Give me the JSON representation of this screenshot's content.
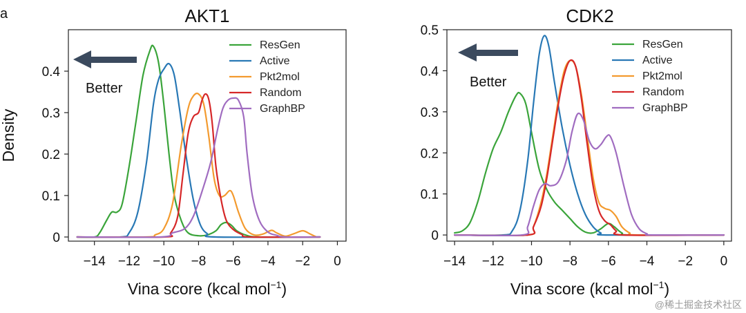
{
  "panel_letter": "a",
  "watermark": "@稀土掘金技术社区",
  "arrow_label": "Better",
  "chart_data": [
    {
      "type": "line",
      "title": "AKT1",
      "xlabel": "Vina score (kcal mol",
      "xlabel_sup": "−1",
      "xlabel_close": ")",
      "ylabel": "Density",
      "xlim": [
        -15.5,
        0.5
      ],
      "ylim": [
        -0.01,
        0.5
      ],
      "xticks": [
        -14,
        -12,
        -10,
        -8,
        -6,
        -4,
        -2,
        0
      ],
      "xtick_labels": [
        "−14",
        "−12",
        "−10",
        "−8",
        "−6",
        "−4",
        "−2",
        "0"
      ],
      "yticks": [
        0,
        0.1,
        0.2,
        0.3,
        0.4
      ],
      "ytick_labels": [
        "0",
        "0.1",
        "0.2",
        "0.3",
        "0.4"
      ],
      "series": [
        {
          "name": "ResGen",
          "color": "#3aa43a",
          "points": [
            [
              -15,
              0
            ],
            [
              -14,
              0
            ],
            [
              -13.7,
              0.01
            ],
            [
              -13.3,
              0.04
            ],
            [
              -13.0,
              0.06
            ],
            [
              -12.7,
              0.06
            ],
            [
              -12.4,
              0.08
            ],
            [
              -12.0,
              0.17
            ],
            [
              -11.6,
              0.28
            ],
            [
              -11.2,
              0.39
            ],
            [
              -10.8,
              0.45
            ],
            [
              -10.6,
              0.46
            ],
            [
              -10.3,
              0.42
            ],
            [
              -10.0,
              0.32
            ],
            [
              -9.7,
              0.2
            ],
            [
              -9.4,
              0.1
            ],
            [
              -9.0,
              0.04
            ],
            [
              -8.6,
              0.01
            ],
            [
              -8.0,
              0.003
            ],
            [
              -7.5,
              0.005
            ],
            [
              -7.0,
              0.015
            ],
            [
              -6.7,
              0.03
            ],
            [
              -6.4,
              0.035
            ],
            [
              -6.1,
              0.028
            ],
            [
              -5.8,
              0.015
            ],
            [
              -5.3,
              0.005
            ],
            [
              -4.5,
              0
            ],
            [
              -1,
              0
            ]
          ]
        },
        {
          "name": "Active",
          "color": "#2878b5",
          "points": [
            [
              -15,
              0
            ],
            [
              -12.5,
              0
            ],
            [
              -12.0,
              0.01
            ],
            [
              -11.5,
              0.06
            ],
            [
              -11.0,
              0.18
            ],
            [
              -10.6,
              0.32
            ],
            [
              -10.3,
              0.38
            ],
            [
              -10.0,
              0.405
            ],
            [
              -9.7,
              0.418
            ],
            [
              -9.4,
              0.39
            ],
            [
              -9.1,
              0.31
            ],
            [
              -8.7,
              0.19
            ],
            [
              -8.3,
              0.09
            ],
            [
              -7.9,
              0.03
            ],
            [
              -7.5,
              0.008
            ],
            [
              -7.0,
              0
            ],
            [
              -1,
              0
            ]
          ]
        },
        {
          "name": "Pkt2mol",
          "color": "#f39a2e",
          "points": [
            [
              -15,
              0
            ],
            [
              -11,
              0
            ],
            [
              -10.5,
              0.005
            ],
            [
              -10.0,
              0.02
            ],
            [
              -9.5,
              0.08
            ],
            [
              -9.0,
              0.22
            ],
            [
              -8.6,
              0.31
            ],
            [
              -8.3,
              0.34
            ],
            [
              -8.0,
              0.345
            ],
            [
              -7.7,
              0.32
            ],
            [
              -7.4,
              0.24
            ],
            [
              -7.1,
              0.14
            ],
            [
              -6.8,
              0.1
            ],
            [
              -6.5,
              0.1
            ],
            [
              -6.2,
              0.112
            ],
            [
              -6.0,
              0.1
            ],
            [
              -5.7,
              0.06
            ],
            [
              -5.3,
              0.02
            ],
            [
              -4.8,
              0.005
            ],
            [
              -4.3,
              0.007
            ],
            [
              -3.8,
              0.016
            ],
            [
              -3.5,
              0.01
            ],
            [
              -3.0,
              0.002
            ],
            [
              -2.5,
              0.008
            ],
            [
              -2.0,
              0.015
            ],
            [
              -1.6,
              0.008
            ],
            [
              -1.2,
              0
            ],
            [
              -1,
              0
            ]
          ]
        },
        {
          "name": "Random",
          "color": "#d62728",
          "points": [
            [
              -15,
              0
            ],
            [
              -10,
              0
            ],
            [
              -9.6,
              0.01
            ],
            [
              -9.2,
              0.05
            ],
            [
              -8.9,
              0.15
            ],
            [
              -8.6,
              0.25
            ],
            [
              -8.3,
              0.29
            ],
            [
              -8.0,
              0.3
            ],
            [
              -7.8,
              0.33
            ],
            [
              -7.6,
              0.345
            ],
            [
              -7.4,
              0.33
            ],
            [
              -7.2,
              0.27
            ],
            [
              -7.0,
              0.17
            ],
            [
              -6.7,
              0.09
            ],
            [
              -6.4,
              0.04
            ],
            [
              -6.0,
              0.018
            ],
            [
              -5.5,
              0.006
            ],
            [
              -5.0,
              0
            ],
            [
              -1,
              0
            ]
          ]
        },
        {
          "name": "GraphBP",
          "color": "#a06cc0",
          "points": [
            [
              -15,
              0
            ],
            [
              -10.2,
              0
            ],
            [
              -9.5,
              0.01
            ],
            [
              -8.8,
              0.02
            ],
            [
              -8.3,
              0.05
            ],
            [
              -7.8,
              0.11
            ],
            [
              -7.3,
              0.18
            ],
            [
              -6.9,
              0.26
            ],
            [
              -6.6,
              0.31
            ],
            [
              -6.3,
              0.33
            ],
            [
              -6.0,
              0.335
            ],
            [
              -5.7,
              0.33
            ],
            [
              -5.4,
              0.29
            ],
            [
              -5.2,
              0.2
            ],
            [
              -4.9,
              0.1
            ],
            [
              -4.5,
              0.04
            ],
            [
              -4.0,
              0.012
            ],
            [
              -3.5,
              0.004
            ],
            [
              -3.0,
              0
            ],
            [
              -1,
              0
            ]
          ]
        }
      ]
    },
    {
      "type": "line",
      "title": "CDK2",
      "xlabel": "Vina score (kcal mol",
      "xlabel_sup": "−1",
      "xlabel_close": ")",
      "ylabel": "",
      "xlim": [
        -14.4,
        0.4
      ],
      "ylim": [
        -0.015,
        0.5
      ],
      "xticks": [
        -14,
        -12,
        -10,
        -8,
        -6,
        -4,
        -2,
        0
      ],
      "xtick_labels": [
        "−14",
        "−12",
        "−10",
        "−8",
        "−6",
        "−4",
        "−2",
        "0"
      ],
      "yticks": [
        0,
        0.1,
        0.2,
        0.3,
        0.4,
        0.5
      ],
      "ytick_labels": [
        "0",
        "0.1",
        "0.2",
        "0.3",
        "0.4",
        "0.5"
      ],
      "series": [
        {
          "name": "ResGen",
          "color": "#3aa43a",
          "points": [
            [
              -14,
              0.005
            ],
            [
              -13.6,
              0.01
            ],
            [
              -13.2,
              0.03
            ],
            [
              -12.8,
              0.08
            ],
            [
              -12.4,
              0.15
            ],
            [
              -12.0,
              0.21
            ],
            [
              -11.6,
              0.25
            ],
            [
              -11.2,
              0.3
            ],
            [
              -10.8,
              0.34
            ],
            [
              -10.6,
              0.345
            ],
            [
              -10.3,
              0.32
            ],
            [
              -10.0,
              0.25
            ],
            [
              -9.6,
              0.16
            ],
            [
              -9.2,
              0.11
            ],
            [
              -8.8,
              0.08
            ],
            [
              -8.4,
              0.06
            ],
            [
              -8.0,
              0.04
            ],
            [
              -7.6,
              0.02
            ],
            [
              -7.2,
              0.007
            ],
            [
              -6.8,
              0.005
            ],
            [
              -6.4,
              0.015
            ],
            [
              -6.0,
              0.028
            ],
            [
              -5.7,
              0.02
            ],
            [
              -5.3,
              0.005
            ],
            [
              -4.8,
              0
            ],
            [
              0,
              0
            ]
          ]
        },
        {
          "name": "Active",
          "color": "#2878b5",
          "points": [
            [
              -14,
              0
            ],
            [
              -11.5,
              0
            ],
            [
              -11.0,
              0.01
            ],
            [
              -10.6,
              0.06
            ],
            [
              -10.2,
              0.18
            ],
            [
              -9.9,
              0.32
            ],
            [
              -9.6,
              0.44
            ],
            [
              -9.35,
              0.485
            ],
            [
              -9.1,
              0.46
            ],
            [
              -8.8,
              0.37
            ],
            [
              -8.4,
              0.26
            ],
            [
              -8.0,
              0.17
            ],
            [
              -7.6,
              0.1
            ],
            [
              -7.2,
              0.05
            ],
            [
              -6.8,
              0.02
            ],
            [
              -6.4,
              0.005
            ],
            [
              -6.0,
              0
            ],
            [
              0,
              0
            ]
          ]
        },
        {
          "name": "Pkt2mol",
          "color": "#f39a2e",
          "points": [
            [
              -14,
              0
            ],
            [
              -10.2,
              0
            ],
            [
              -9.9,
              0.02
            ],
            [
              -9.5,
              0.08
            ],
            [
              -9.2,
              0.15
            ],
            [
              -8.9,
              0.24
            ],
            [
              -8.6,
              0.33
            ],
            [
              -8.3,
              0.4
            ],
            [
              -8.0,
              0.425
            ],
            [
              -7.7,
              0.41
            ],
            [
              -7.4,
              0.34
            ],
            [
              -7.1,
              0.24
            ],
            [
              -6.8,
              0.14
            ],
            [
              -6.5,
              0.08
            ],
            [
              -6.2,
              0.065
            ],
            [
              -5.9,
              0.06
            ],
            [
              -5.6,
              0.045
            ],
            [
              -5.3,
              0.02
            ],
            [
              -4.9,
              0.005
            ],
            [
              -4.5,
              0
            ],
            [
              0,
              0
            ]
          ]
        },
        {
          "name": "Random",
          "color": "#d62728",
          "points": [
            [
              -14,
              0
            ],
            [
              -10.2,
              0
            ],
            [
              -9.9,
              0.02
            ],
            [
              -9.5,
              0.07
            ],
            [
              -9.2,
              0.14
            ],
            [
              -8.9,
              0.23
            ],
            [
              -8.6,
              0.32
            ],
            [
              -8.3,
              0.39
            ],
            [
              -8.0,
              0.425
            ],
            [
              -7.7,
              0.41
            ],
            [
              -7.4,
              0.33
            ],
            [
              -7.1,
              0.22
            ],
            [
              -6.8,
              0.12
            ],
            [
              -6.5,
              0.06
            ],
            [
              -6.2,
              0.035
            ],
            [
              -5.9,
              0.025
            ],
            [
              -5.6,
              0.01
            ],
            [
              -5.2,
              0
            ],
            [
              0,
              0
            ]
          ]
        },
        {
          "name": "GraphBP",
          "color": "#a06cc0",
          "points": [
            [
              -14,
              0
            ],
            [
              -10.5,
              0
            ],
            [
              -10.2,
              0.02
            ],
            [
              -9.9,
              0.07
            ],
            [
              -9.6,
              0.11
            ],
            [
              -9.3,
              0.125
            ],
            [
              -9.0,
              0.12
            ],
            [
              -8.6,
              0.13
            ],
            [
              -8.2,
              0.18
            ],
            [
              -7.9,
              0.25
            ],
            [
              -7.6,
              0.295
            ],
            [
              -7.3,
              0.28
            ],
            [
              -7.0,
              0.23
            ],
            [
              -6.7,
              0.21
            ],
            [
              -6.4,
              0.22
            ],
            [
              -6.1,
              0.24
            ],
            [
              -5.9,
              0.24
            ],
            [
              -5.6,
              0.2
            ],
            [
              -5.2,
              0.12
            ],
            [
              -4.8,
              0.05
            ],
            [
              -4.4,
              0.015
            ],
            [
              -4.0,
              0.003
            ],
            [
              -3.7,
              0
            ],
            [
              0,
              0
            ]
          ]
        }
      ]
    }
  ]
}
